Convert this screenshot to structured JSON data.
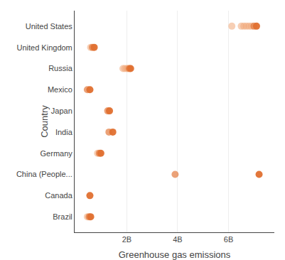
{
  "chart_data": {
    "type": "dot",
    "xlabel": "Greenhouse gas emissions",
    "ylabel": "Country",
    "categories": [
      "United States",
      "United Kingdom",
      "Russia",
      "Mexico",
      "Japan",
      "India",
      "Germany",
      "China (People...",
      "Canada",
      "Brazil"
    ],
    "values": [
      [
        6.13,
        6.5,
        6.6,
        6.7,
        6.8,
        6.9,
        7.0,
        7.1
      ],
      [
        0.58,
        0.65,
        0.72
      ],
      [
        1.85,
        1.92,
        2.0,
        2.05,
        2.1,
        2.15
      ],
      [
        0.45,
        0.55
      ],
      [
        1.25,
        1.32
      ],
      [
        1.3,
        1.45
      ],
      [
        0.85,
        0.92,
        0.98
      ],
      [
        3.9,
        7.2
      ],
      [
        0.55
      ],
      [
        0.45,
        0.52,
        0.58
      ]
    ],
    "colors": [
      [
        "#F0A878",
        "#F0A878",
        "#F0A878",
        "#F0A878",
        "#F0A878",
        "#F0A878",
        "#E07030",
        "#E07030"
      ],
      [
        "#F0A878",
        "#E07030",
        "#E07030"
      ],
      [
        "#F0A878",
        "#F0A878",
        "#F0A878",
        "#F0A878",
        "#E07030",
        "#E07030"
      ],
      [
        "#E07030",
        "#E07030"
      ],
      [
        "#E07030",
        "#E07030"
      ],
      [
        "#E07030",
        "#E07030"
      ],
      [
        "#F0A878",
        "#E07030",
        "#E07030"
      ],
      [
        "#E07030",
        "#E07030"
      ],
      [
        "#E07030"
      ],
      [
        "#F0A878",
        "#E07030",
        "#E07030"
      ]
    ],
    "xlim": [
      -0.05,
      7.8
    ],
    "xticks": [
      {
        "value": 2,
        "label": "2B"
      },
      {
        "value": 4,
        "label": "4B"
      },
      {
        "value": 6,
        "label": "6B"
      }
    ],
    "grid": "x"
  }
}
